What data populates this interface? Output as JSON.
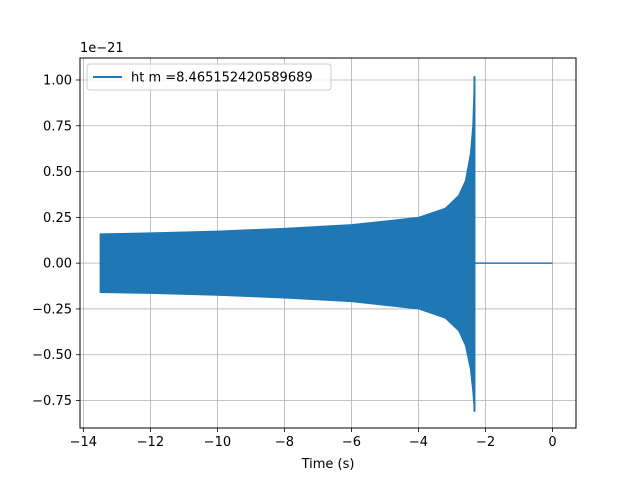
{
  "chart_data": {
    "type": "line",
    "title": "",
    "xlabel": "Time (s)",
    "ylabel": "",
    "y_scale_label": "1e−21",
    "xlim": [
      -14.1,
      0.7
    ],
    "ylim": [
      -0.9,
      1.12
    ],
    "x_ticks": [
      -14,
      -12,
      -10,
      -8,
      -6,
      -4,
      -2,
      0
    ],
    "x_tick_labels": [
      "−14",
      "−12",
      "−10",
      "−8",
      "−6",
      "−4",
      "−2",
      "0"
    ],
    "y_ticks": [
      -0.75,
      -0.5,
      -0.25,
      0.0,
      0.25,
      0.5,
      0.75,
      1.0
    ],
    "y_tick_labels": [
      "−0.75",
      "−0.50",
      "−0.25",
      "0.00",
      "0.25",
      "0.50",
      "0.75",
      "1.00"
    ],
    "grid": true,
    "legend": {
      "position": "top-left"
    },
    "series": [
      {
        "name": "ht m =8.465152420589689",
        "color": "#1f77b4",
        "envelope": {
          "x": [
            -13.5,
            -12,
            -10,
            -8,
            -6,
            -4,
            -3.2,
            -2.8,
            -2.6,
            -2.45,
            -2.38,
            -2.33
          ],
          "upper": [
            0.16,
            0.165,
            0.175,
            0.19,
            0.21,
            0.25,
            0.3,
            0.37,
            0.45,
            0.6,
            0.75,
            1.02
          ],
          "lower": [
            -0.16,
            -0.165,
            -0.175,
            -0.19,
            -0.21,
            -0.25,
            -0.3,
            -0.37,
            -0.45,
            -0.58,
            -0.7,
            -0.81
          ]
        },
        "tail": {
          "x": [
            -2.33,
            0.0
          ],
          "y": [
            0.0,
            0.0
          ]
        }
      }
    ]
  }
}
